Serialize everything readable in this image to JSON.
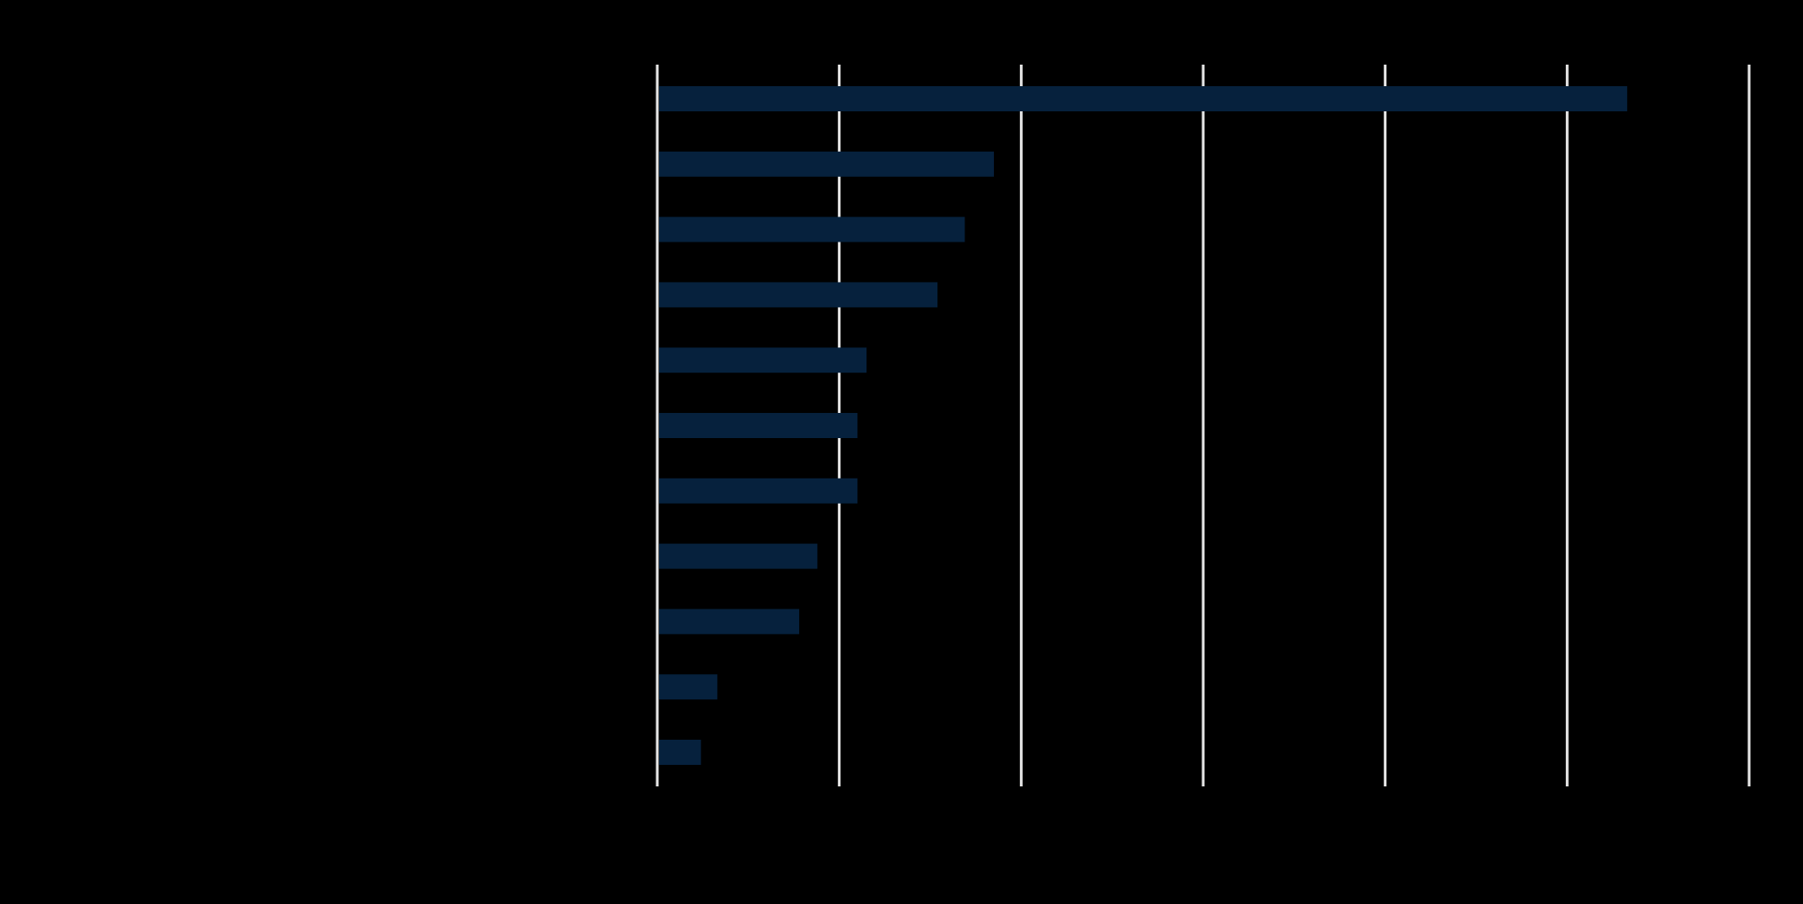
{
  "colors": {
    "background": "#000000",
    "bar": "#06213D",
    "gridline": "#E6E6E6",
    "axis": "#E6E6E6"
  },
  "chart_data": {
    "type": "bar",
    "orientation": "horizontal",
    "categories": [
      "",
      "",
      "",
      "",
      "",
      "",
      "",
      "",
      "",
      "",
      ""
    ],
    "values": [
      5.33,
      1.85,
      1.69,
      1.54,
      1.15,
      1.1,
      1.1,
      0.88,
      0.78,
      0.33,
      0.24
    ],
    "title": "",
    "xlabel": "",
    "ylabel": "",
    "xlim": [
      0,
      6
    ],
    "xticks": [
      0,
      1,
      2,
      3,
      4,
      5,
      6
    ],
    "grid": true,
    "legend": "none"
  }
}
